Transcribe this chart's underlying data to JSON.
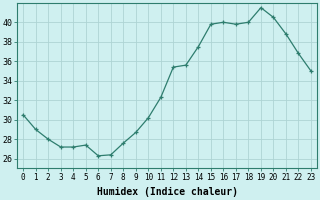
{
  "x": [
    0,
    1,
    2,
    3,
    4,
    5,
    6,
    7,
    8,
    9,
    10,
    11,
    12,
    13,
    14,
    15,
    16,
    17,
    18,
    19,
    20,
    21,
    22,
    23
  ],
  "y": [
    30.5,
    29.0,
    28.0,
    27.2,
    27.2,
    27.4,
    26.3,
    26.4,
    27.6,
    28.7,
    30.2,
    32.3,
    35.4,
    35.6,
    37.5,
    39.8,
    40.0,
    39.8,
    40.0,
    41.5,
    40.5,
    38.8,
    36.8,
    35.0
  ],
  "line_color": "#2e7d6e",
  "marker": "+",
  "bg_color": "#cff0f0",
  "grid_color": "#aed4d4",
  "xlabel": "Humidex (Indice chaleur)",
  "xlim": [
    -0.5,
    23.5
  ],
  "ylim": [
    25,
    42
  ],
  "yticks": [
    26,
    28,
    30,
    32,
    34,
    36,
    38,
    40
  ],
  "xtick_labels": [
    "0",
    "1",
    "2",
    "3",
    "4",
    "5",
    "6",
    "7",
    "8",
    "9",
    "10",
    "11",
    "12",
    "13",
    "14",
    "15",
    "16",
    "17",
    "18",
    "19",
    "20",
    "21",
    "22",
    "23"
  ],
  "font_family": "monospace"
}
